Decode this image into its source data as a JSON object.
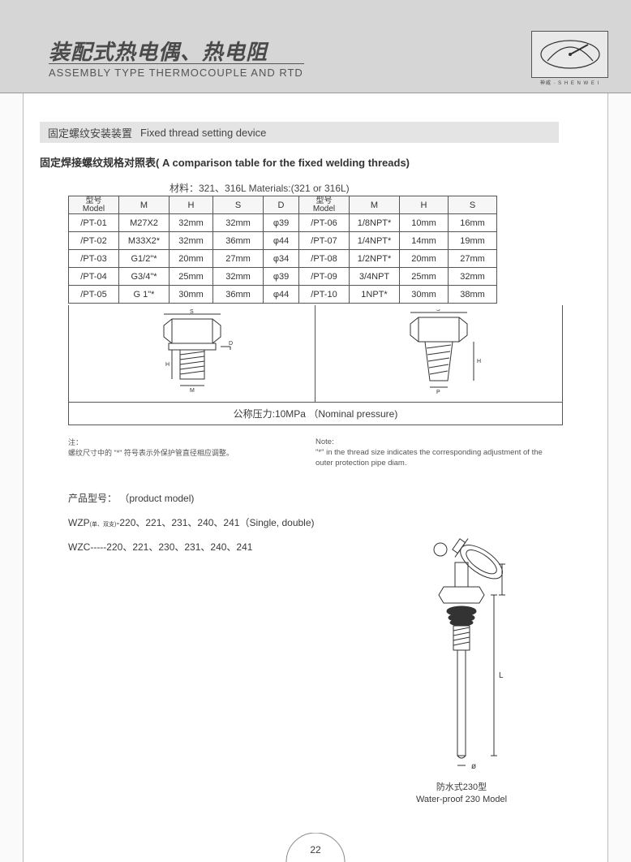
{
  "header": {
    "title_cn": "装配式热电偶、热电阻",
    "title_en": "ASSEMBLY TYPE THERMOCOUPLE AND RTD",
    "logo_caption": "神威 · S H E N W E I"
  },
  "section": {
    "bar_cn": "固定螺纹安装装置",
    "bar_en": "Fixed thread setting device",
    "table_title": "固定焊接螺纹规格对照表( A comparison table for the fixed welding threads)",
    "materials": "材料：321、316L  Materials:(321 or 316L)"
  },
  "table": {
    "headers_left": {
      "model_cn": "型号",
      "model_en": "Model",
      "M": "M",
      "H": "H",
      "S": "S",
      "D": "D"
    },
    "headers_right": {
      "model_cn": "型号",
      "model_en": "Model",
      "M": "M",
      "H": "H",
      "S": "S"
    },
    "rows_left": [
      {
        "model": "/PT-01",
        "M": "M27X2",
        "H": "32mm",
        "S": "32mm",
        "D": "φ39"
      },
      {
        "model": "/PT-02",
        "M": "M33X2*",
        "H": "32mm",
        "S": "36mm",
        "D": "φ44"
      },
      {
        "model": "/PT-03",
        "M": "G1/2\"*",
        "H": "20mm",
        "S": "27mm",
        "D": "φ34"
      },
      {
        "model": "/PT-04",
        "M": "G3/4\"*",
        "H": "25mm",
        "S": "32mm",
        "D": "φ39"
      },
      {
        "model": "/PT-05",
        "M": "G 1\"*",
        "H": "30mm",
        "S": "36mm",
        "D": "φ44"
      }
    ],
    "rows_right": [
      {
        "model": "/PT-06",
        "M": "1/8NPT*",
        "H": "10mm",
        "S": "16mm"
      },
      {
        "model": "/PT-07",
        "M": "1/4NPT*",
        "H": "14mm",
        "S": "19mm"
      },
      {
        "model": "/PT-08",
        "M": "1/2NPT*",
        "H": "20mm",
        "S": "27mm"
      },
      {
        "model": "/PT-09",
        "M": "3/4NPT",
        "H": "25mm",
        "S": "32mm"
      },
      {
        "model": "/PT-10",
        "M": "1NPT*",
        "H": "30mm",
        "S": "38mm"
      }
    ],
    "pressure": "公称压力:10MPa  （Nominal pressure)"
  },
  "notes": {
    "cn_label": "注：",
    "cn_body": "螺纹尺寸中的 \"*\" 符号表示外保护管直径相应调整。",
    "en_label": "Note:",
    "en_body": "\"*\" in the thread size indicates the corresponding adjustment of the outer protection pipe diam."
  },
  "product_model": {
    "title": "产品型号： （product model)",
    "line1_prefix": "WZP",
    "line1_tiny": "(单、双支)",
    "line1_rest": "-220、221、231、240、241（Single, double)",
    "line2": "WZC-----220、221、230、231、240、241"
  },
  "probe": {
    "caption_cn": "防水式230型",
    "caption_en": "Water-proof 230 Model"
  },
  "page": {
    "number": "22"
  },
  "colors": {
    "header_gray": "#d6d6d6",
    "section_gray": "#e4e4e4",
    "line": "#555555",
    "text": "#3a3a3a",
    "border": "#bdbdbd"
  }
}
